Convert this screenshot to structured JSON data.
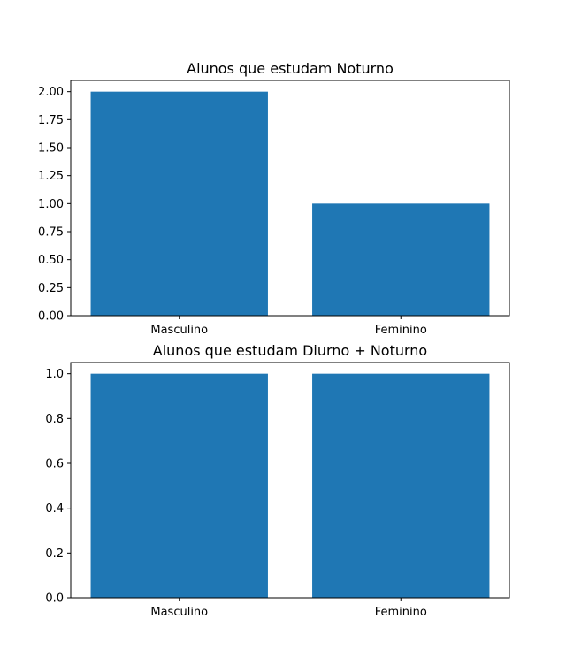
{
  "chart_data": [
    {
      "type": "bar",
      "title": "Alunos que estudam Noturno",
      "categories": [
        "Masculino",
        "Feminino"
      ],
      "values": [
        2,
        1
      ],
      "ylim": [
        0,
        2.1
      ],
      "yticks": [
        "0.00",
        "0.25",
        "0.50",
        "0.75",
        "1.00",
        "1.25",
        "1.50",
        "1.75",
        "2.00"
      ],
      "color": "#1f77b4",
      "xlabel": "",
      "ylabel": "",
      "grid": false
    },
    {
      "type": "bar",
      "title": "Alunos que estudam Diurno + Noturno",
      "categories": [
        "Masculino",
        "Feminino"
      ],
      "values": [
        1,
        1
      ],
      "ylim": [
        0,
        1.05
      ],
      "yticks": [
        "0.0",
        "0.2",
        "0.4",
        "0.6",
        "0.8",
        "1.0"
      ],
      "color": "#1f77b4",
      "xlabel": "",
      "ylabel": "",
      "grid": false
    }
  ]
}
